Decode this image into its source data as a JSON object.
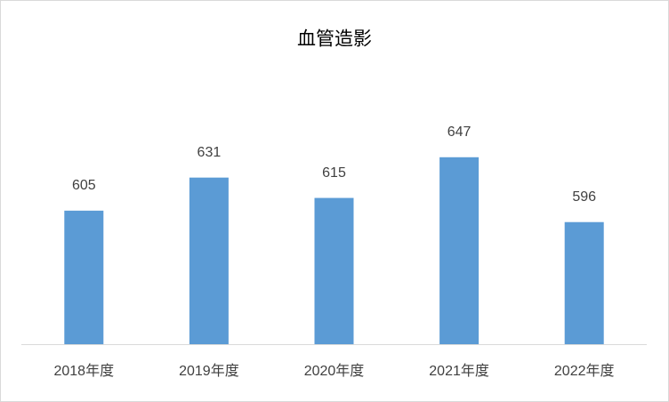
{
  "chart_data": {
    "type": "bar",
    "title": "血管造影",
    "categories": [
      "2018年度",
      "2019年度",
      "2020年度",
      "2021年度",
      "2022年度"
    ],
    "values": [
      605,
      631,
      615,
      647,
      596
    ],
    "color": "#5b9bd5",
    "ylim": [
      500,
      700
    ]
  }
}
